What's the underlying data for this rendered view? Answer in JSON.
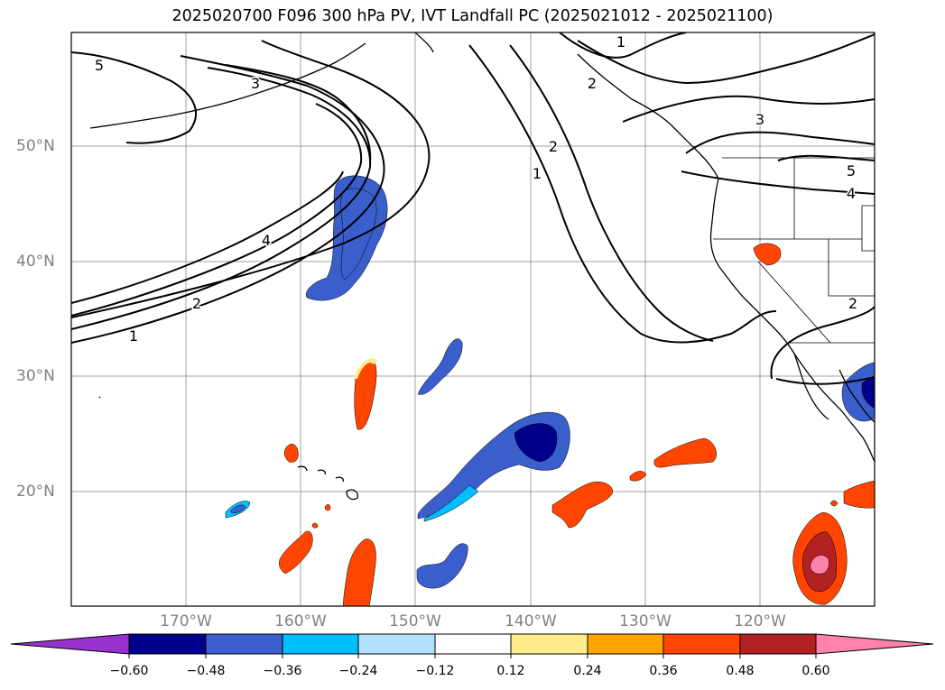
{
  "title": "2025020700 F096 300 hPa PV, IVT Landfall PC (2025021012 - 2025021100)",
  "map": {
    "lat_labels": [
      "50°N",
      "40°N",
      "30°N",
      "20°N"
    ],
    "lon_labels": [
      "170°W",
      "160°W",
      "150°W",
      "140°W",
      "130°W",
      "120°W"
    ],
    "gridline_color": "#a0a0a0",
    "coast_color": "#000000"
  },
  "contours": {
    "color": "#000000",
    "labels": [
      "5",
      "3",
      "4",
      "2",
      "1",
      "1",
      "2",
      "2",
      "1",
      "3",
      "5",
      "4",
      "2"
    ]
  },
  "colorbar": {
    "ticks": [
      "−0.60",
      "−0.48",
      "−0.36",
      "−0.24",
      "−0.12",
      "0.12",
      "0.24",
      "0.36",
      "0.48",
      "0.60"
    ],
    "colors": [
      "#9932cc",
      "#00008b",
      "#3a5fcd",
      "#00bfff",
      "#b0e2ff",
      "#ffffff",
      "#ffec8b",
      "#ffa500",
      "#ff4500",
      "#b22222",
      "#ff82ab"
    ]
  }
}
